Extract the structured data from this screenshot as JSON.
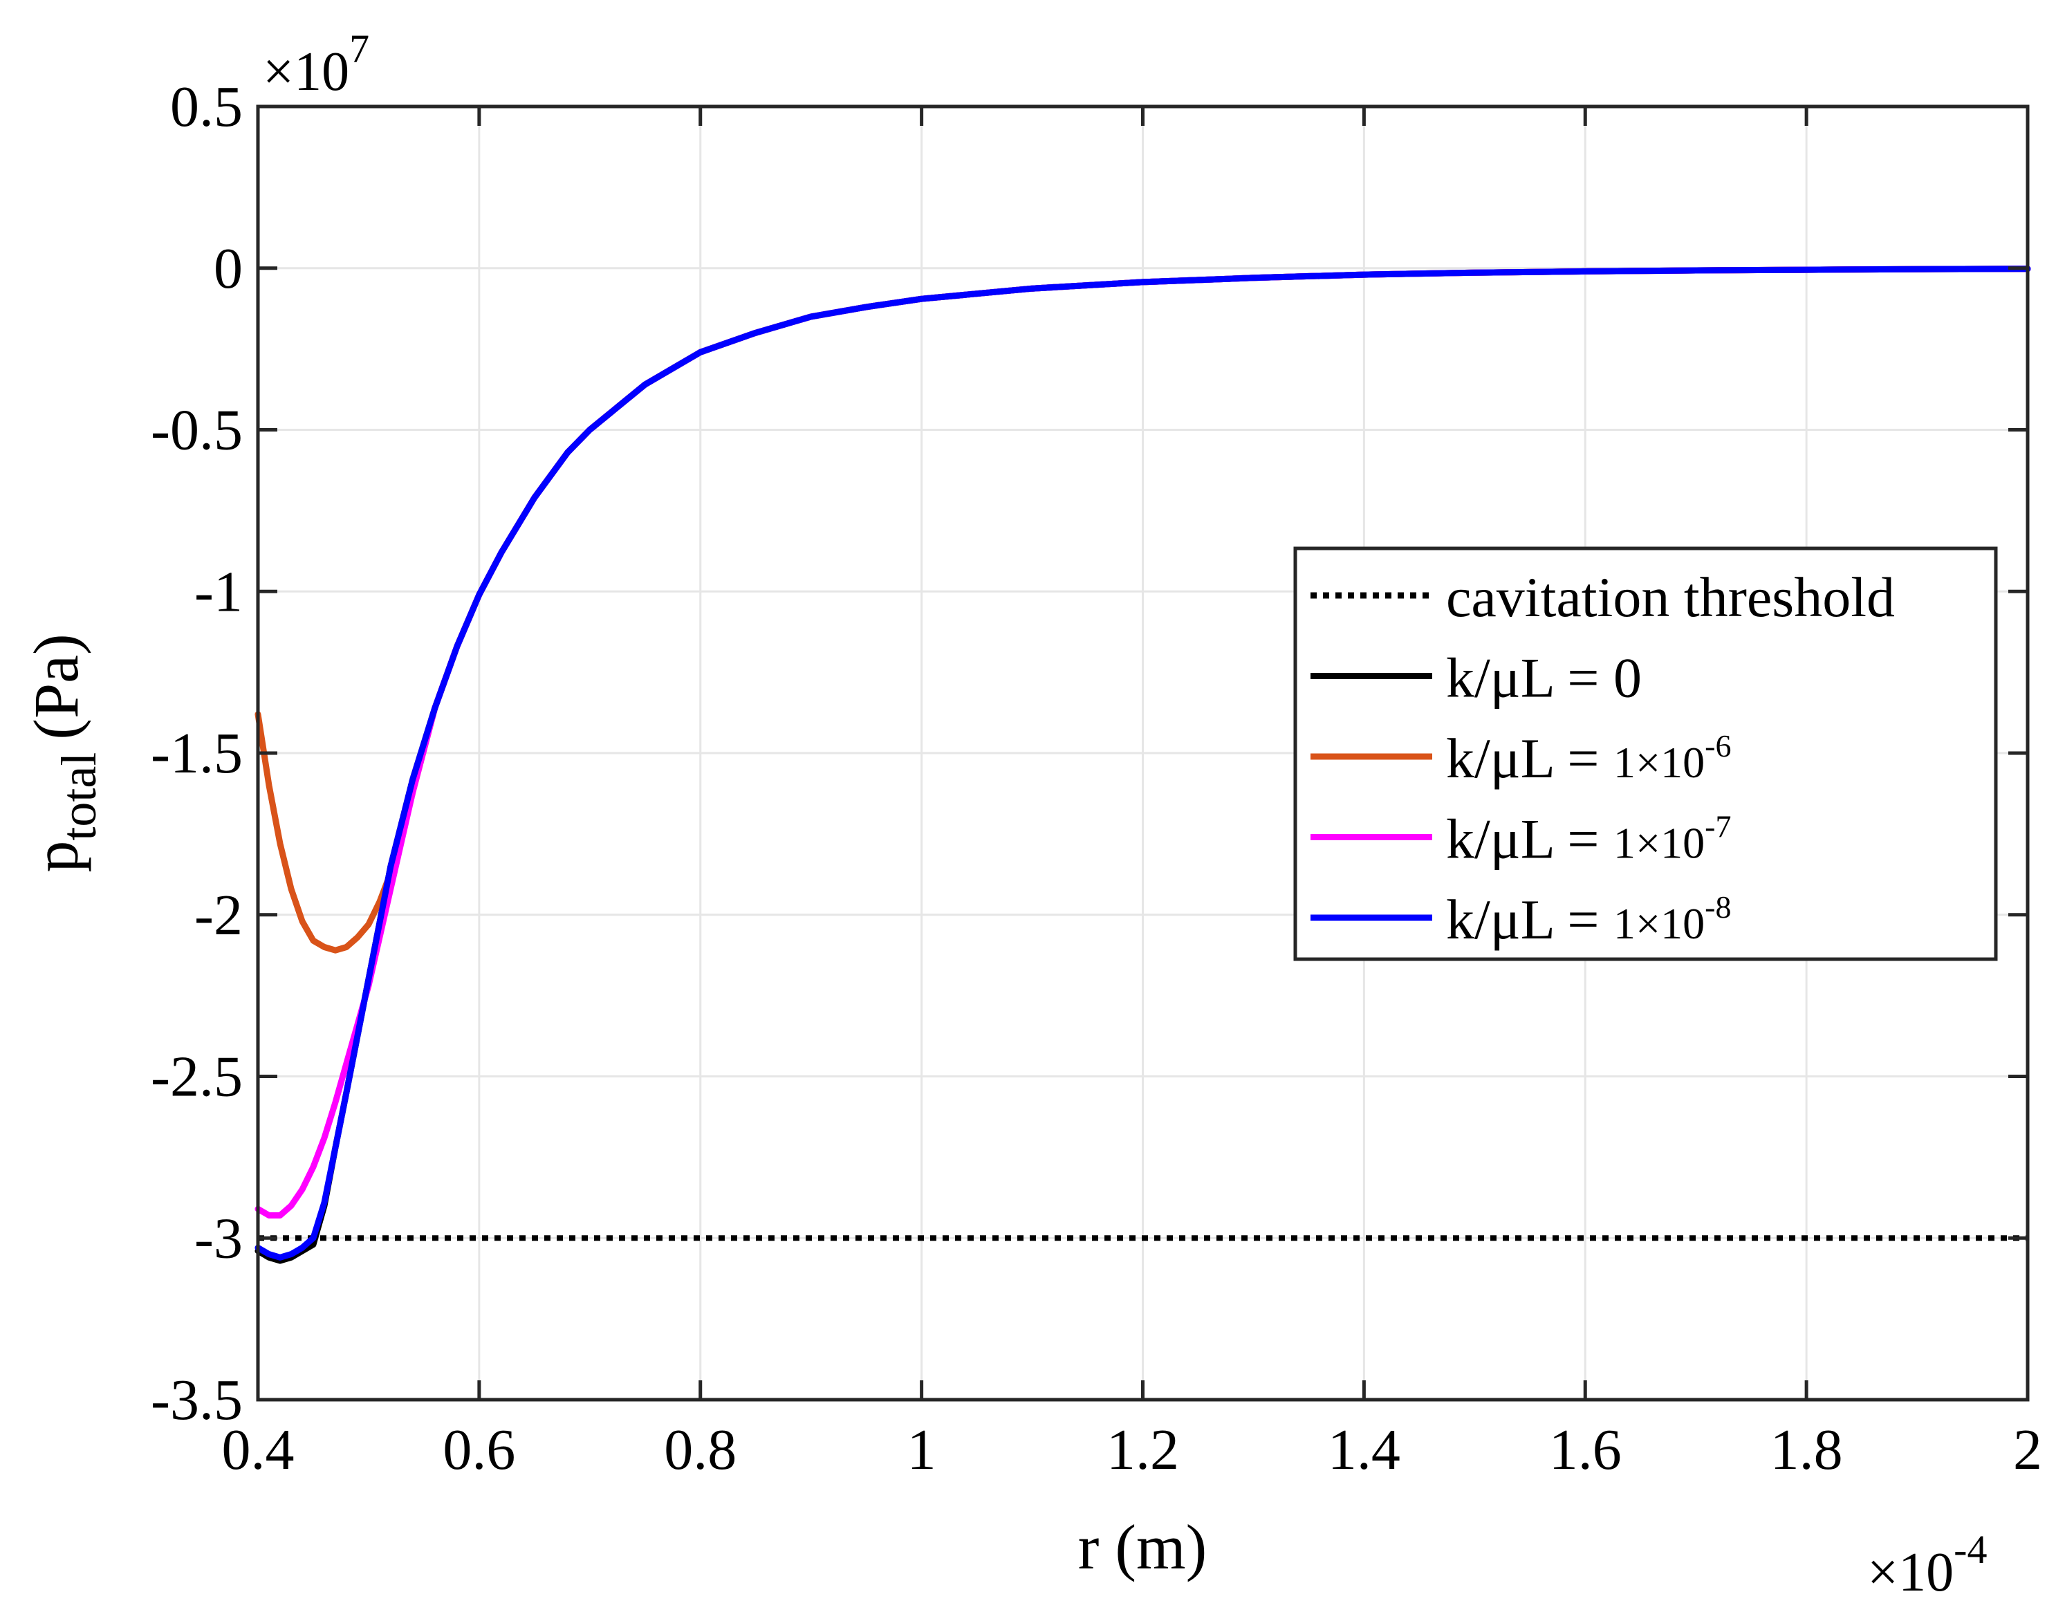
{
  "chart_data": {
    "type": "line",
    "title": "",
    "xlabel": "r (m)",
    "ylabel_main": "p",
    "ylabel_subscript": "total",
    "ylabel_unit": "(Pa)",
    "x_multiplier": "×10",
    "x_multiplier_exp": "-4",
    "y_multiplier": "×10",
    "y_multiplier_exp": "7",
    "xlim": [
      0.4,
      2.0
    ],
    "ylim": [
      -3.5,
      0.5
    ],
    "xticks": [
      0.4,
      0.6,
      0.8,
      1.0,
      1.2,
      1.4,
      1.6,
      1.8,
      2.0
    ],
    "xtick_labels": [
      "0.4",
      "0.6",
      "0.8",
      "1",
      "1.2",
      "1.4",
      "1.6",
      "1.8",
      "2"
    ],
    "yticks": [
      0.5,
      0,
      -0.5,
      -1,
      -1.5,
      -2,
      -2.5,
      -3,
      -3.5
    ],
    "ytick_labels": [
      "0.5",
      "0",
      "-0.5",
      "-1",
      "-1.5",
      "-2",
      "-2.5",
      "-3",
      "-3.5"
    ],
    "grid": true,
    "legend_position": "center-right",
    "legend": [
      {
        "prefix": "cavitation threshold",
        "suffix": "",
        "exp": "",
        "color": "#000000",
        "dash": "dotted"
      },
      {
        "prefix": "k/μL = ",
        "suffix": "0",
        "exp": "",
        "color": "#000000",
        "dash": "solid"
      },
      {
        "prefix": "k/μL = ",
        "suffix": "1×10",
        "exp": "-6",
        "color": "#D95319",
        "dash": "solid"
      },
      {
        "prefix": "k/μL = ",
        "suffix": "1×10",
        "exp": "-7",
        "color": "#FF00FF",
        "dash": "solid"
      },
      {
        "prefix": "k/μL = ",
        "suffix": "1×10",
        "exp": "-8",
        "color": "#0000FF",
        "dash": "solid"
      }
    ],
    "series": [
      {
        "name": "cavitation threshold",
        "color": "#000000",
        "dash": "dotted",
        "x": [
          0.4,
          2.0
        ],
        "y": [
          -3.0,
          -3.0
        ]
      },
      {
        "name": "k/μL = 0",
        "color": "#000000",
        "dash": "solid",
        "x": [
          0.4,
          0.41,
          0.42,
          0.43,
          0.44,
          0.45,
          0.46,
          0.47,
          0.48,
          0.5,
          0.52,
          0.54,
          0.56,
          0.58,
          0.6,
          0.62,
          0.65,
          0.68,
          0.7,
          0.75,
          0.8,
          0.85,
          0.9,
          0.95,
          1.0,
          1.1,
          1.2,
          1.3,
          1.4,
          1.5,
          1.6,
          1.7,
          1.8,
          1.9,
          2.0
        ],
        "y": [
          -3.04,
          -3.06,
          -3.07,
          -3.06,
          -3.04,
          -3.02,
          -2.9,
          -2.72,
          -2.55,
          -2.2,
          -1.85,
          -1.58,
          -1.36,
          -1.17,
          -1.01,
          -0.88,
          -0.71,
          -0.57,
          -0.5,
          -0.36,
          -0.26,
          -0.2,
          -0.15,
          -0.12,
          -0.095,
          -0.063,
          -0.043,
          -0.03,
          -0.02,
          -0.014,
          -0.01,
          -0.007,
          -0.005,
          -0.003,
          -0.002
        ]
      },
      {
        "name": "k/μL = 1×10-6",
        "color": "#D95319",
        "dash": "solid",
        "x": [
          0.4,
          0.41,
          0.42,
          0.43,
          0.44,
          0.45,
          0.46,
          0.47,
          0.48,
          0.49,
          0.5,
          0.51,
          0.52,
          0.53,
          0.54,
          0.56,
          0.58,
          0.6,
          0.62,
          0.65,
          0.68,
          0.7,
          0.75,
          0.8,
          0.85,
          0.9,
          0.95,
          1.0,
          1.1,
          1.2,
          1.3,
          1.4,
          1.5,
          1.6,
          1.7,
          1.8,
          1.9,
          2.0
        ],
        "y": [
          -1.38,
          -1.6,
          -1.78,
          -1.92,
          -2.02,
          -2.08,
          -2.1,
          -2.11,
          -2.1,
          -2.07,
          -2.03,
          -1.96,
          -1.87,
          -1.76,
          -1.62,
          -1.36,
          -1.17,
          -1.01,
          -0.88,
          -0.71,
          -0.57,
          -0.5,
          -0.36,
          -0.26,
          -0.2,
          -0.15,
          -0.12,
          -0.095,
          -0.063,
          -0.043,
          -0.03,
          -0.02,
          -0.014,
          -0.01,
          -0.007,
          -0.005,
          -0.003,
          -0.002
        ]
      },
      {
        "name": "k/μL = 1×10-7",
        "color": "#FF00FF",
        "dash": "solid",
        "x": [
          0.4,
          0.41,
          0.42,
          0.43,
          0.44,
          0.45,
          0.46,
          0.47,
          0.48,
          0.49,
          0.5,
          0.52,
          0.54,
          0.56,
          0.58,
          0.6,
          0.62,
          0.65,
          0.68,
          0.7,
          0.75,
          0.8,
          0.85,
          0.9,
          0.95,
          1.0,
          1.1,
          1.2,
          1.3,
          1.4,
          1.5,
          1.6,
          1.7,
          1.8,
          1.9,
          2.0
        ],
        "y": [
          -2.91,
          -2.93,
          -2.93,
          -2.9,
          -2.85,
          -2.78,
          -2.69,
          -2.58,
          -2.46,
          -2.34,
          -2.22,
          -1.92,
          -1.62,
          -1.36,
          -1.17,
          -1.01,
          -0.88,
          -0.71,
          -0.57,
          -0.5,
          -0.36,
          -0.26,
          -0.2,
          -0.15,
          -0.12,
          -0.095,
          -0.063,
          -0.043,
          -0.03,
          -0.02,
          -0.014,
          -0.01,
          -0.007,
          -0.005,
          -0.003,
          -0.002
        ]
      },
      {
        "name": "k/μL = 1×10-8",
        "color": "#0000FF",
        "dash": "solid",
        "x": [
          0.4,
          0.41,
          0.42,
          0.43,
          0.44,
          0.45,
          0.46,
          0.47,
          0.48,
          0.5,
          0.52,
          0.54,
          0.56,
          0.58,
          0.6,
          0.62,
          0.65,
          0.68,
          0.7,
          0.75,
          0.8,
          0.85,
          0.9,
          0.95,
          1.0,
          1.1,
          1.2,
          1.3,
          1.4,
          1.5,
          1.6,
          1.7,
          1.8,
          1.9,
          2.0
        ],
        "y": [
          -3.03,
          -3.05,
          -3.06,
          -3.05,
          -3.03,
          -3.0,
          -2.89,
          -2.72,
          -2.55,
          -2.2,
          -1.85,
          -1.58,
          -1.36,
          -1.17,
          -1.01,
          -0.88,
          -0.71,
          -0.57,
          -0.5,
          -0.36,
          -0.26,
          -0.2,
          -0.15,
          -0.12,
          -0.095,
          -0.063,
          -0.043,
          -0.03,
          -0.02,
          -0.014,
          -0.01,
          -0.007,
          -0.005,
          -0.003,
          -0.002
        ]
      }
    ]
  }
}
